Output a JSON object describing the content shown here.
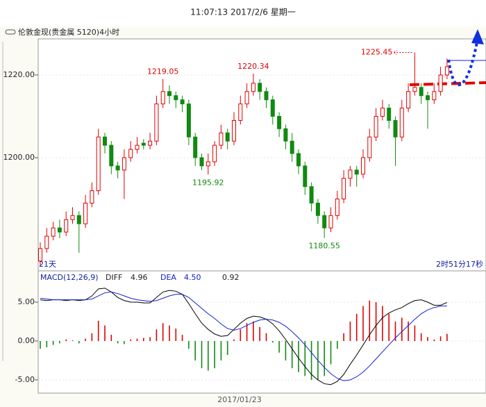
{
  "header": {
    "time": "11:07:13 2017/2/6 星期一",
    "symbol": "伦敦金现(贵金属  5120)4小时",
    "period_left": "21天",
    "countdown": "2时51分17秒",
    "date_label": "2017/01/23"
  },
  "chart_data": [
    {
      "type": "candlestick",
      "ylim": [
        1172.94,
        1228.4
      ],
      "yticks": [
        {
          "value": 1220,
          "label": "1220.00"
        },
        {
          "value": 1200,
          "label": "1200.00"
        }
      ],
      "up_color": "#e00000",
      "down_color": "#108a10",
      "candles": [
        [
          1175,
          1179.5,
          1174,
          1178
        ],
        [
          1178,
          1183,
          1177,
          1181
        ],
        [
          1181,
          1184.5,
          1180,
          1183
        ],
        [
          1183,
          1185,
          1180.5,
          1182
        ],
        [
          1182,
          1187,
          1181,
          1185
        ],
        [
          1185,
          1188,
          1184,
          1186
        ],
        [
          1186,
          1187,
          1177,
          1184
        ],
        [
          1184,
          1191,
          1183,
          1189
        ],
        [
          1189,
          1194,
          1188,
          1192
        ],
        [
          1192,
          1207,
          1191,
          1205
        ],
        [
          1205,
          1206,
          1201,
          1203
        ],
        [
          1203,
          1204,
          1196,
          1198
        ],
        [
          1198,
          1199,
          1195,
          1197
        ],
        [
          1197,
          1202,
          1190,
          1200
        ],
        [
          1200,
          1204,
          1199,
          1202
        ],
        [
          1202,
          1205,
          1201,
          1203
        ],
        [
          1203.5,
          1204.5,
          1202,
          1203
        ],
        [
          1203,
          1206,
          1202,
          1204
        ],
        [
          1204,
          1215,
          1203,
          1213
        ],
        [
          1213,
          1219.05,
          1212,
          1216
        ],
        [
          1216,
          1217.5,
          1213,
          1215
        ],
        [
          1215,
          1216,
          1212,
          1214
        ],
        [
          1214,
          1215,
          1211,
          1213
        ],
        [
          1213,
          1214,
          1203,
          1205
        ],
        [
          1205,
          1206,
          1198,
          1200
        ],
        [
          1200,
          1201,
          1197,
          1198
        ],
        [
          1198,
          1201,
          1195.92,
          1199
        ],
        [
          1199,
          1204,
          1198,
          1203
        ],
        [
          1203,
          1208,
          1202,
          1206
        ],
        [
          1206,
          1207,
          1202,
          1204
        ],
        [
          1204,
          1211,
          1203,
          1209
        ],
        [
          1209,
          1215,
          1208,
          1213
        ],
        [
          1213,
          1218,
          1212,
          1216
        ],
        [
          1216,
          1220.34,
          1215,
          1218
        ],
        [
          1218,
          1219,
          1214,
          1216
        ],
        [
          1216,
          1217,
          1212,
          1214
        ],
        [
          1214,
          1215,
          1208,
          1210
        ],
        [
          1210,
          1211,
          1205,
          1207
        ],
        [
          1207,
          1208,
          1202,
          1204
        ],
        [
          1204,
          1206,
          1199,
          1201
        ],
        [
          1201,
          1202,
          1196,
          1198
        ],
        [
          1198,
          1199,
          1191,
          1193
        ],
        [
          1193,
          1194,
          1187,
          1189
        ],
        [
          1189,
          1190,
          1184,
          1186
        ],
        [
          1186,
          1187,
          1180.55,
          1183
        ],
        [
          1183,
          1188,
          1182,
          1186
        ],
        [
          1186,
          1192,
          1185,
          1190
        ],
        [
          1190,
          1197,
          1189,
          1195
        ],
        [
          1195,
          1198,
          1193,
          1197
        ],
        [
          1197,
          1198,
          1193,
          1196
        ],
        [
          1196,
          1202,
          1195,
          1200
        ],
        [
          1200,
          1207,
          1199,
          1205
        ],
        [
          1205,
          1212,
          1204,
          1210
        ],
        [
          1210,
          1214,
          1209,
          1212
        ],
        [
          1212,
          1213,
          1207,
          1209
        ],
        [
          1209,
          1210,
          1198,
          1205
        ],
        [
          1205,
          1214,
          1204,
          1212
        ],
        [
          1212,
          1218,
          1211,
          1216
        ],
        [
          1216,
          1225.45,
          1215,
          1217
        ],
        [
          1217,
          1218,
          1213,
          1215
        ],
        [
          1215,
          1216,
          1207,
          1214
        ],
        [
          1214,
          1218,
          1213,
          1216
        ],
        [
          1216,
          1222,
          1215,
          1220
        ],
        [
          1220,
          1224,
          1219,
          1222
        ]
      ]
    },
    {
      "type": "macd",
      "title": "MACD(12,26,9)",
      "ylim": [
        -6.61,
        7.41
      ],
      "yticks": [
        {
          "value": 5,
          "label": "5.00"
        },
        {
          "value": 0,
          "label": "0.00"
        },
        {
          "value": -5,
          "label": "-5.00"
        }
      ],
      "readouts": [
        "4.96",
        "4.50",
        "0.92"
      ],
      "histogram": [
        -1,
        -0.8,
        -0.5,
        -0.3,
        0.2,
        0.1,
        -0.3,
        0.3,
        1,
        2.6,
        2,
        0.8,
        -0.3,
        -0.4,
        0.2,
        0.3,
        0.4,
        0.5,
        1.5,
        2.3,
        2,
        1.6,
        0.8,
        -1,
        -2.5,
        -3.5,
        -3.8,
        -3.5,
        -2.5,
        -1.8,
        0.2,
        1.5,
        2.3,
        2.5,
        1.8,
        1,
        -0.2,
        -1.5,
        -2.5,
        -3.5,
        -4,
        -4.5,
        -5,
        -5,
        -4.5,
        -3,
        -1,
        1,
        2.5,
        3.5,
        4.5,
        5.2,
        5,
        4.5,
        3.5,
        2.5,
        3,
        2.5,
        2,
        1,
        0.5,
        0.2,
        0.6,
        0.92
      ],
      "up_color": "#e00000",
      "down_color": "#108a10",
      "series": [
        {
          "name": "DIFF",
          "color": "#000000",
          "values": [
            5.3,
            5.2,
            5.3,
            5.3,
            5.2,
            5.3,
            5.2,
            5.3,
            5.8,
            6.7,
            6.8,
            6.3,
            5.6,
            5.2,
            5,
            5,
            4.9,
            4.9,
            5.6,
            6.3,
            6.5,
            6.4,
            6,
            4.8,
            3.5,
            2.3,
            1.5,
            0.9,
            0.6,
            0.7,
            1.5,
            2.3,
            2.9,
            3.2,
            3.1,
            2.8,
            2.2,
            1.3,
            0.2,
            -1,
            -2.2,
            -3.3,
            -4.3,
            -5,
            -5.5,
            -5.6,
            -5.2,
            -4.3,
            -3,
            -1.8,
            -0.5,
            0.8,
            2,
            3,
            3.6,
            4,
            4.3,
            4.8,
            5.2,
            5.3,
            5,
            4.6,
            4.6,
            4.96
          ]
        },
        {
          "name": "DEA",
          "color": "#1020d0",
          "values": [
            5.5,
            5.4,
            5.3,
            5.3,
            5.3,
            5.3,
            5.3,
            5.3,
            5.4,
            5.8,
            6.2,
            6.3,
            6.1,
            5.8,
            5.5,
            5.3,
            5.2,
            5.1,
            5.2,
            5.5,
            5.8,
            6,
            6,
            5.6,
            4.9,
            4.2,
            3.5,
            2.9,
            2.2,
            1.6,
            1.4,
            1.6,
            2,
            2.4,
            2.7,
            2.8,
            2.7,
            2.4,
            1.9,
            1.2,
            0.4,
            -0.5,
            -1.5,
            -2.5,
            -3.4,
            -4.2,
            -4.8,
            -5.1,
            -5,
            -4.6,
            -4,
            -3.2,
            -2.3,
            -1.4,
            -0.5,
            0.4,
            1.2,
            2,
            2.8,
            3.5,
            4,
            4.3,
            4.5,
            4.5
          ]
        }
      ]
    }
  ]
}
